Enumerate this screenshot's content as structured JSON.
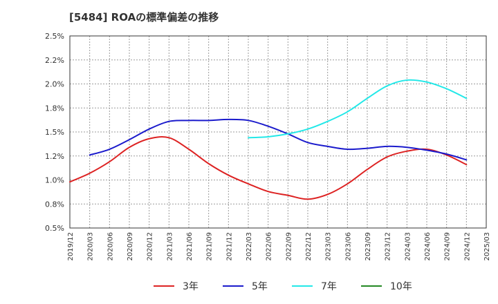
{
  "chart_data": {
    "type": "line",
    "title": "[5484]  ROAの標準偏差の推移",
    "xlabel": "",
    "ylabel": "",
    "ylim": [
      0.5,
      2.5
    ],
    "y_ticks": [
      "2.5%",
      "2.2%",
      "2.0%",
      "1.8%",
      "1.5%",
      "1.2%",
      "1.0%",
      "0.8%",
      "0.5%"
    ],
    "x_ticks": [
      "2019/12",
      "2020/03",
      "2020/06",
      "2020/09",
      "2020/12",
      "2021/03",
      "2021/06",
      "2021/09",
      "2021/12",
      "2022/03",
      "2022/06",
      "2022/09",
      "2022/12",
      "2023/03",
      "2023/06",
      "2023/09",
      "2023/12",
      "2024/03",
      "2024/06",
      "2024/09",
      "2024/12",
      "2025/03"
    ],
    "grid": true,
    "legend_position": "bottom",
    "series": [
      {
        "name": "3年",
        "color": "#dd2222",
        "points": [
          [
            "2019/12",
            0.98
          ],
          [
            "2020/03",
            1.07
          ],
          [
            "2020/06",
            1.19
          ],
          [
            "2020/09",
            1.34
          ],
          [
            "2020/12",
            1.43
          ],
          [
            "2021/03",
            1.44
          ],
          [
            "2021/06",
            1.32
          ],
          [
            "2021/09",
            1.17
          ],
          [
            "2021/12",
            1.05
          ],
          [
            "2022/03",
            0.96
          ],
          [
            "2022/06",
            0.88
          ],
          [
            "2022/09",
            0.84
          ],
          [
            "2022/12",
            0.8
          ],
          [
            "2023/03",
            0.85
          ],
          [
            "2023/06",
            0.96
          ],
          [
            "2023/09",
            1.11
          ],
          [
            "2023/12",
            1.24
          ],
          [
            "2024/03",
            1.3
          ],
          [
            "2024/06",
            1.32
          ],
          [
            "2024/09",
            1.26
          ],
          [
            "2024/12",
            1.16
          ]
        ]
      },
      {
        "name": "5年",
        "color": "#1a1acc",
        "points": [
          [
            "2020/03",
            1.26
          ],
          [
            "2020/06",
            1.32
          ],
          [
            "2020/09",
            1.42
          ],
          [
            "2020/12",
            1.53
          ],
          [
            "2021/03",
            1.61
          ],
          [
            "2021/06",
            1.62
          ],
          [
            "2021/09",
            1.62
          ],
          [
            "2021/12",
            1.63
          ],
          [
            "2022/03",
            1.62
          ],
          [
            "2022/06",
            1.56
          ],
          [
            "2022/09",
            1.48
          ],
          [
            "2022/12",
            1.39
          ],
          [
            "2023/03",
            1.35
          ],
          [
            "2023/06",
            1.32
          ],
          [
            "2023/09",
            1.33
          ],
          [
            "2023/12",
            1.35
          ],
          [
            "2024/03",
            1.34
          ],
          [
            "2024/06",
            1.31
          ],
          [
            "2024/09",
            1.27
          ],
          [
            "2024/12",
            1.21
          ]
        ]
      },
      {
        "name": "7年",
        "color": "#22e8e8",
        "points": [
          [
            "2022/03",
            1.44
          ],
          [
            "2022/06",
            1.45
          ],
          [
            "2022/09",
            1.48
          ],
          [
            "2022/12",
            1.53
          ],
          [
            "2023/03",
            1.61
          ],
          [
            "2023/06",
            1.71
          ],
          [
            "2023/09",
            1.85
          ],
          [
            "2023/12",
            1.98
          ],
          [
            "2024/03",
            2.04
          ],
          [
            "2024/06",
            2.02
          ],
          [
            "2024/09",
            1.95
          ],
          [
            "2024/12",
            1.85
          ]
        ]
      },
      {
        "name": "10年",
        "color": "#228822",
        "points": []
      }
    ]
  }
}
